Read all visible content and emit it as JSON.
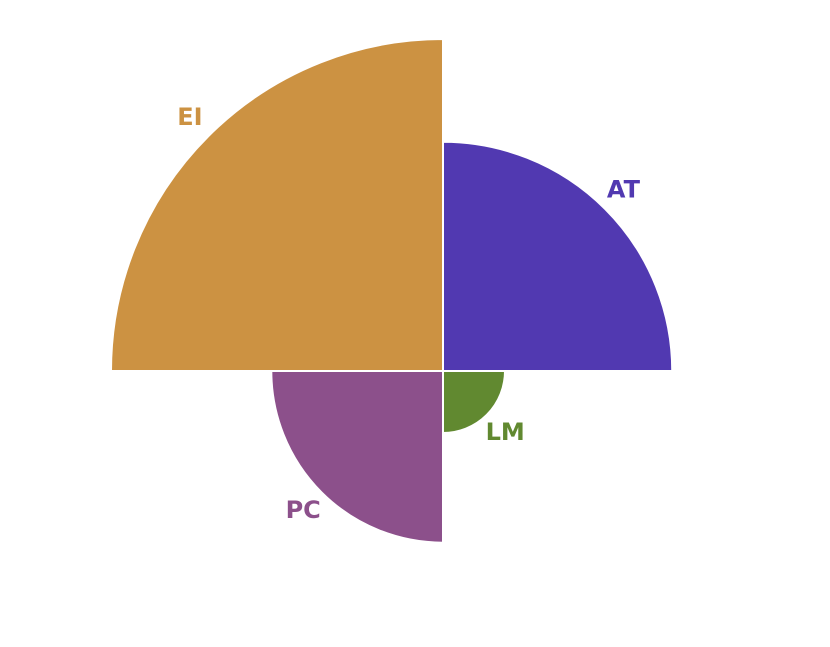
{
  "chart_data": {
    "type": "pie",
    "subtype": "polar-area",
    "title": "",
    "categories": [
      "AT",
      "LM",
      "PC",
      "EI"
    ],
    "values": [
      41,
      3,
      23,
      86
    ],
    "colors": [
      "#5139b1",
      "#618930",
      "#8c508b",
      "#cc9242"
    ],
    "legend": "none",
    "grid": false
  }
}
